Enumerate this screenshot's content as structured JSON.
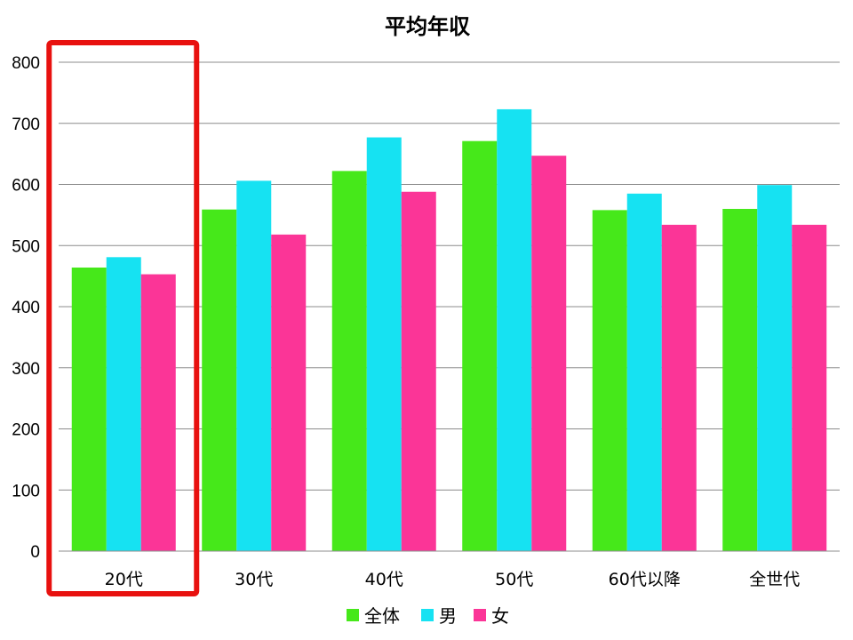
{
  "chart_data": {
    "type": "bar",
    "title": "平均年収",
    "categories": [
      "20代",
      "30代",
      "40代",
      "50代",
      "60代以降",
      "全世代"
    ],
    "series": [
      {
        "name": "全体",
        "color": "#46e81a",
        "values": [
          464,
          559,
          622,
          671,
          558,
          560
        ]
      },
      {
        "name": "男",
        "color": "#16e2f2",
        "values": [
          481,
          606,
          677,
          723,
          585,
          599
        ]
      },
      {
        "name": "女",
        "color": "#fb3597",
        "values": [
          453,
          518,
          588,
          647,
          534,
          534
        ]
      }
    ],
    "ylim": [
      0,
      800
    ],
    "yticks": [
      0,
      100,
      200,
      300,
      400,
      500,
      600,
      700,
      800
    ],
    "grid": true,
    "legend": "bottom",
    "highlight": {
      "category": "20代",
      "color": "#e8110f"
    }
  }
}
